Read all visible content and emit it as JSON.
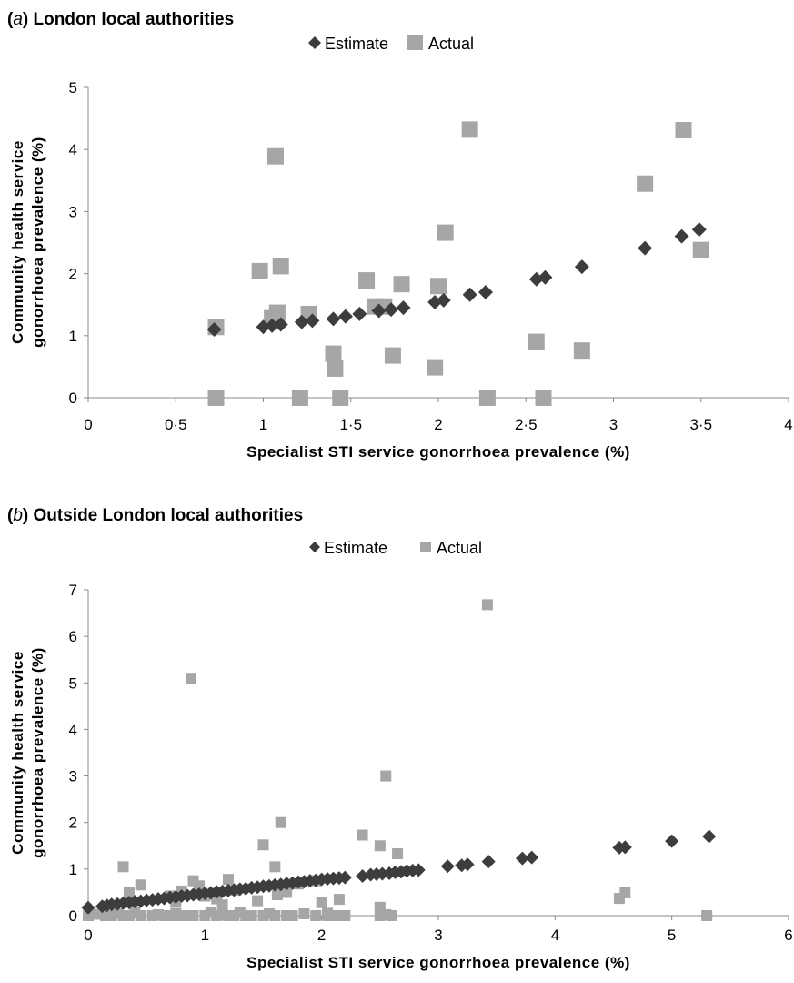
{
  "chart_data": [
    {
      "type": "scatter",
      "panel_tag": "a",
      "title": "London local authorities",
      "xlabel": "Specialist STI service gonorrhoea prevalence (%)",
      "ylabel_lines": [
        "Community health service",
        "gonorrhoea prevalence (%)"
      ],
      "xlim": [
        0,
        4
      ],
      "ylim": [
        0,
        5
      ],
      "x_ticks": [
        0,
        0.5,
        1,
        1.5,
        2,
        2.5,
        3,
        3.5,
        4
      ],
      "x_tick_labels": [
        "0",
        "0·5",
        "1",
        "1·5",
        "2",
        "2·5",
        "3",
        "3·5",
        "4"
      ],
      "y_ticks": [
        0,
        1,
        2,
        3,
        4,
        5
      ],
      "y_tick_labels": [
        "0",
        "1",
        "2",
        "3",
        "4",
        "5"
      ],
      "grid": false,
      "legend_position": "top-center",
      "series": [
        {
          "name": "Estimate",
          "marker": "diamond",
          "color": "#3d3d3d",
          "x": [
            0.72,
            1.0,
            1.05,
            1.1,
            1.22,
            1.28,
            1.4,
            1.47,
            1.55,
            1.66,
            1.73,
            1.8,
            1.98,
            2.03,
            2.18,
            2.27,
            2.56,
            2.61,
            2.82,
            3.18,
            3.39,
            3.49
          ],
          "y": [
            1.1,
            1.14,
            1.16,
            1.18,
            1.22,
            1.24,
            1.27,
            1.31,
            1.35,
            1.4,
            1.42,
            1.45,
            1.54,
            1.57,
            1.66,
            1.7,
            1.91,
            1.94,
            2.11,
            2.41,
            2.6,
            2.71
          ]
        },
        {
          "name": "Actual",
          "marker": "square",
          "color": "#a6a6a6",
          "x": [
            0.73,
            0.73,
            0.98,
            1.05,
            1.07,
            1.08,
            1.1,
            1.21,
            1.26,
            1.4,
            1.41,
            1.44,
            1.59,
            1.64,
            1.69,
            1.74,
            1.79,
            1.98,
            2.0,
            2.04,
            2.18,
            2.28,
            2.56,
            2.6,
            2.82,
            3.18,
            3.4,
            3.5
          ],
          "y": [
            1.14,
            0.0,
            2.04,
            1.28,
            3.89,
            1.37,
            2.12,
            0.0,
            1.35,
            0.71,
            0.47,
            0.0,
            1.89,
            1.47,
            1.47,
            0.68,
            1.83,
            0.49,
            1.8,
            2.66,
            4.32,
            0.0,
            0.9,
            0.0,
            0.76,
            3.45,
            4.31,
            2.38
          ]
        }
      ]
    },
    {
      "type": "scatter",
      "panel_tag": "b",
      "title": "Outside London local authorities",
      "xlabel": "Specialist STI service gonorrhoea prevalence (%)",
      "ylabel_lines": [
        "Community health service",
        "gonorrhoea prevalence (%)"
      ],
      "xlim": [
        0,
        6
      ],
      "ylim": [
        0,
        7
      ],
      "x_ticks": [
        0,
        1,
        2,
        3,
        4,
        5,
        6
      ],
      "x_tick_labels": [
        "0",
        "1",
        "2",
        "3",
        "4",
        "5",
        "6"
      ],
      "y_ticks": [
        0,
        1,
        2,
        3,
        4,
        5,
        6,
        7
      ],
      "y_tick_labels": [
        "0",
        "1",
        "2",
        "3",
        "4",
        "5",
        "6",
        "7"
      ],
      "grid": false,
      "legend_position": "top-center",
      "series": [
        {
          "name": "Estimate",
          "marker": "diamond",
          "color": "#3d3d3d",
          "x": [
            0.0,
            0.12,
            0.16,
            0.2,
            0.25,
            0.3,
            0.35,
            0.4,
            0.45,
            0.5,
            0.55,
            0.6,
            0.65,
            0.7,
            0.75,
            0.8,
            0.85,
            0.9,
            0.95,
            1.0,
            1.05,
            1.1,
            1.15,
            1.2,
            1.25,
            1.3,
            1.35,
            1.4,
            1.45,
            1.5,
            1.55,
            1.6,
            1.65,
            1.7,
            1.75,
            1.8,
            1.85,
            1.9,
            1.95,
            2.0,
            2.05,
            2.1,
            2.15,
            2.2,
            2.35,
            2.42,
            2.47,
            2.52,
            2.58,
            2.63,
            2.68,
            2.73,
            2.78,
            2.83,
            3.08,
            3.2,
            3.25,
            3.43,
            3.72,
            3.8,
            4.55,
            4.6,
            5.0,
            5.32
          ],
          "y": [
            0.17,
            0.2,
            0.22,
            0.24,
            0.25,
            0.27,
            0.28,
            0.3,
            0.31,
            0.33,
            0.34,
            0.36,
            0.37,
            0.39,
            0.4,
            0.42,
            0.43,
            0.45,
            0.46,
            0.48,
            0.49,
            0.51,
            0.52,
            0.54,
            0.55,
            0.57,
            0.58,
            0.6,
            0.61,
            0.63,
            0.64,
            0.66,
            0.67,
            0.69,
            0.7,
            0.72,
            0.73,
            0.75,
            0.76,
            0.78,
            0.79,
            0.8,
            0.81,
            0.82,
            0.85,
            0.88,
            0.89,
            0.9,
            0.91,
            0.93,
            0.94,
            0.96,
            0.97,
            0.98,
            1.06,
            1.08,
            1.1,
            1.16,
            1.23,
            1.25,
            1.46,
            1.47,
            1.6,
            1.7
          ]
        },
        {
          "name": "Actual",
          "marker": "square",
          "color": "#a6a6a6",
          "x": [
            0.0,
            0.08,
            0.15,
            0.2,
            0.25,
            0.3,
            0.35,
            0.4,
            0.45,
            0.55,
            0.6,
            0.65,
            0.7,
            0.75,
            0.8,
            0.85,
            0.9,
            1.0,
            1.05,
            1.1,
            1.15,
            1.2,
            1.25,
            1.3,
            1.35,
            1.4,
            1.5,
            1.55,
            1.6,
            1.7,
            1.75,
            1.85,
            1.95,
            2.05,
            2.1,
            2.15,
            2.2,
            2.5,
            2.55,
            2.6,
            3.42,
            4.55,
            4.6,
            5.3,
            0.3,
            0.35,
            0.45,
            0.7,
            0.75,
            0.8,
            0.9,
            0.95,
            1.0,
            1.1,
            1.2,
            1.25,
            1.45,
            1.5,
            1.6,
            1.62,
            1.65,
            1.7,
            1.8,
            1.95,
            2.0,
            2.05,
            2.15,
            2.35,
            2.5,
            2.55,
            2.65,
            2.5,
            0.88,
            1.15
          ],
          "y": [
            0.0,
            0.03,
            0.0,
            0.0,
            0.04,
            0.0,
            0.0,
            0.06,
            0.0,
            0.0,
            0.02,
            0.0,
            0.0,
            0.05,
            0.0,
            0.0,
            0.0,
            0.0,
            0.08,
            0.0,
            0.02,
            0.0,
            0.0,
            0.06,
            0.0,
            0.0,
            0.0,
            0.04,
            0.0,
            0.0,
            0.0,
            0.04,
            0.0,
            0.0,
            0.0,
            0.0,
            0.0,
            0.0,
            0.02,
            0.0,
            6.68,
            0.37,
            0.49,
            0.0,
            1.05,
            0.5,
            0.66,
            0.42,
            0.31,
            0.53,
            0.75,
            0.64,
            0.42,
            0.36,
            0.78,
            0.55,
            0.32,
            1.52,
            1.05,
            0.45,
            2.0,
            0.5,
            0.68,
            0.75,
            0.28,
            0.05,
            0.35,
            1.73,
            1.5,
            3.0,
            1.33,
            0.18,
            5.1,
            0.23
          ]
        }
      ]
    }
  ]
}
